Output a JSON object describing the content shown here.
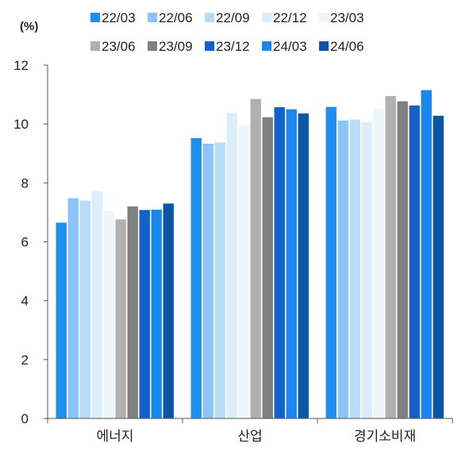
{
  "chart_data": {
    "type": "bar",
    "unit_label": "(%)",
    "categories": [
      "에너지",
      "산업",
      "경기소비재"
    ],
    "ylim": [
      0,
      12
    ],
    "yticks": [
      0,
      2,
      4,
      6,
      8,
      10,
      12
    ],
    "grid": false,
    "legend_position": "top",
    "series": [
      {
        "name": "22/03",
        "color": "#1f8ef1",
        "values": [
          6.65,
          9.52,
          10.58
        ]
      },
      {
        "name": "22/06",
        "color": "#8cc4f7",
        "values": [
          7.48,
          9.33,
          10.12
        ]
      },
      {
        "name": "22/09",
        "color": "#b9dbf7",
        "values": [
          7.4,
          9.37,
          10.15
        ]
      },
      {
        "name": "22/12",
        "color": "#dcedfb",
        "values": [
          7.72,
          10.38,
          10.06
        ]
      },
      {
        "name": "23/03",
        "color": "#eef5fc",
        "values": [
          7.05,
          9.95,
          10.53
        ]
      },
      {
        "name": "23/06",
        "color": "#b0b0b0",
        "values": [
          6.76,
          10.85,
          10.95
        ]
      },
      {
        "name": "23/09",
        "color": "#808080",
        "values": [
          7.2,
          10.23,
          10.77
        ]
      },
      {
        "name": "23/12",
        "color": "#1560c8",
        "values": [
          7.08,
          10.57,
          10.63
        ]
      },
      {
        "name": "24/03",
        "color": "#1a86f0",
        "values": [
          7.09,
          10.5,
          11.15
        ]
      },
      {
        "name": "24/06",
        "color": "#0b55a6",
        "values": [
          7.3,
          10.36,
          10.28
        ]
      }
    ]
  }
}
